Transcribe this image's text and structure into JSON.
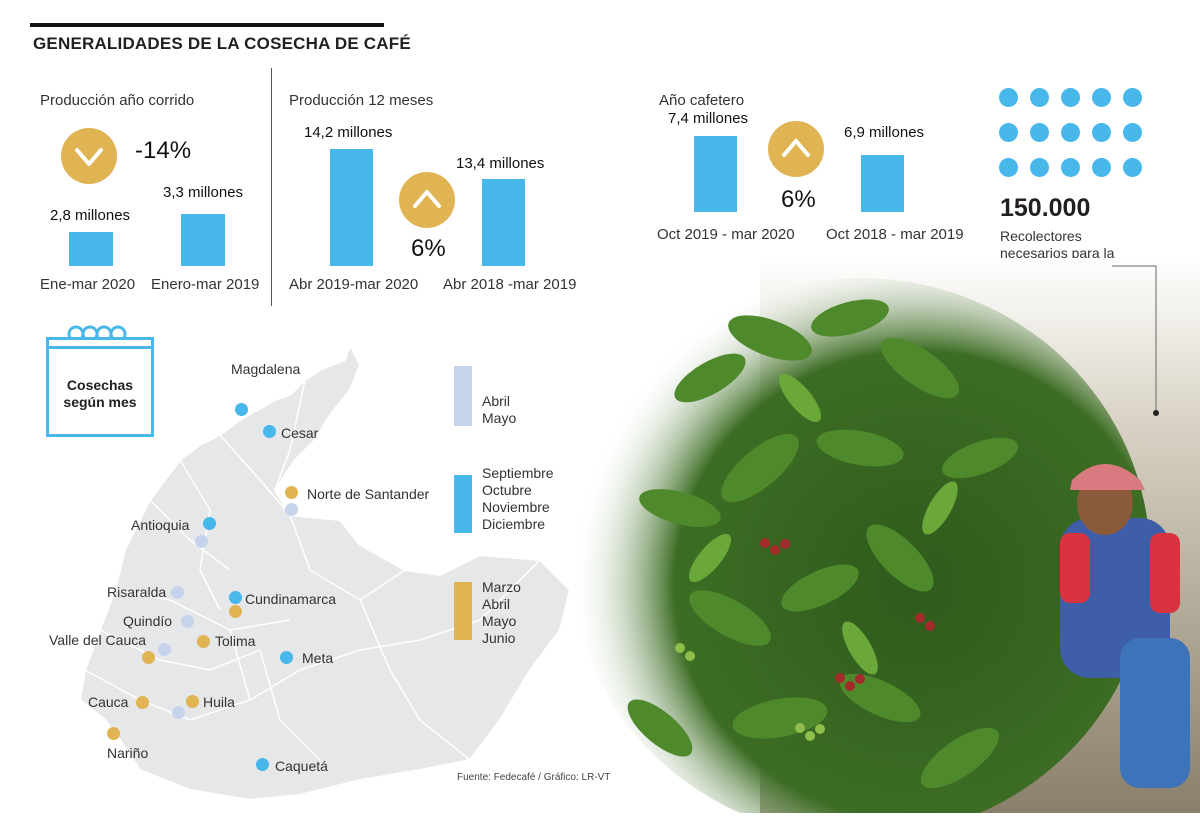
{
  "title": "GENERALIDADES DE LA COSECHA DE CAFÉ",
  "colors": {
    "bar": "#48b7ea",
    "badge": "#e0b453",
    "season_apr_may": "#c5d3ec",
    "season_sep_dec": "#48b7ea",
    "season_mar_jun": "#e0b453",
    "map_fill": "#e6e7e8"
  },
  "chart_data": [
    {
      "type": "bar",
      "title": "Producción año corrido",
      "categories": [
        "Ene-mar 2020",
        "Enero-mar 2019"
      ],
      "values": [
        2.8,
        3.3
      ],
      "value_labels": [
        "2,8 millones",
        "3,3 millones"
      ],
      "change": {
        "value": "-14%",
        "direction": "down",
        "icon": "chevron-down-icon"
      }
    },
    {
      "type": "bar",
      "title": "Producción 12 meses",
      "categories": [
        "Abr 2019-mar 2020",
        "Abr 2018 -mar 2019"
      ],
      "values": [
        14.2,
        13.4
      ],
      "value_labels": [
        "14,2 millones",
        "13,4 millones"
      ],
      "change": {
        "value": "6%",
        "direction": "up",
        "icon": "chevron-up-icon"
      }
    },
    {
      "type": "bar",
      "title": "Año cafetero",
      "categories": [
        "Oct 2019 - mar 2020",
        "Oct 2018 - mar 2019"
      ],
      "values": [
        7.4,
        6.9
      ],
      "value_labels": [
        "7,4 millones",
        "6,9 millones"
      ],
      "change": {
        "value": "6%",
        "direction": "up",
        "icon": "chevron-up-icon"
      }
    }
  ],
  "pickers": {
    "value": "150.000",
    "caption": "Recolectores necesarios para la cosecha",
    "dot_count": 15,
    "icon": "dot-grid-icon"
  },
  "calendar": {
    "label": "Cosechas según mes",
    "icon": "calendar-icon"
  },
  "legend": [
    {
      "key": "apr_may",
      "months": "Abril\nMayo"
    },
    {
      "key": "sep_dec",
      "months": "Septiembre\nOctubre\nNoviembre\nDiciembre"
    },
    {
      "key": "mar_jun",
      "months": "Marzo\nAbril\nMayo\nJunio"
    }
  ],
  "regions": [
    {
      "name": "Magdalena",
      "seasons": [
        "sep_dec"
      ]
    },
    {
      "name": "Cesar",
      "seasons": [
        "sep_dec"
      ]
    },
    {
      "name": "Norte de Santander",
      "seasons": [
        "mar_jun",
        "apr_may"
      ]
    },
    {
      "name": "Antioquia",
      "seasons": [
        "sep_dec",
        "apr_may"
      ]
    },
    {
      "name": "Risaralda",
      "seasons": [
        "apr_may"
      ]
    },
    {
      "name": "Cundinamarca",
      "seasons": [
        "sep_dec",
        "mar_jun"
      ]
    },
    {
      "name": "Quindío",
      "seasons": [
        "apr_may"
      ]
    },
    {
      "name": "Valle del Cauca",
      "seasons": [
        "mar_jun",
        "apr_may"
      ]
    },
    {
      "name": "Tolima",
      "seasons": [
        "mar_jun"
      ]
    },
    {
      "name": "Meta",
      "seasons": [
        "sep_dec"
      ]
    },
    {
      "name": "Cauca",
      "seasons": [
        "mar_jun"
      ]
    },
    {
      "name": "Huila",
      "seasons": [
        "mar_jun",
        "apr_may"
      ]
    },
    {
      "name": "Nariño",
      "seasons": [
        "mar_jun"
      ]
    },
    {
      "name": "Caquetá",
      "seasons": [
        "sep_dec"
      ]
    }
  ],
  "source": "Fuente: Fedecafé / Gráfico: LR-VT",
  "photo": {
    "subject": "coffee-picker-photo"
  }
}
